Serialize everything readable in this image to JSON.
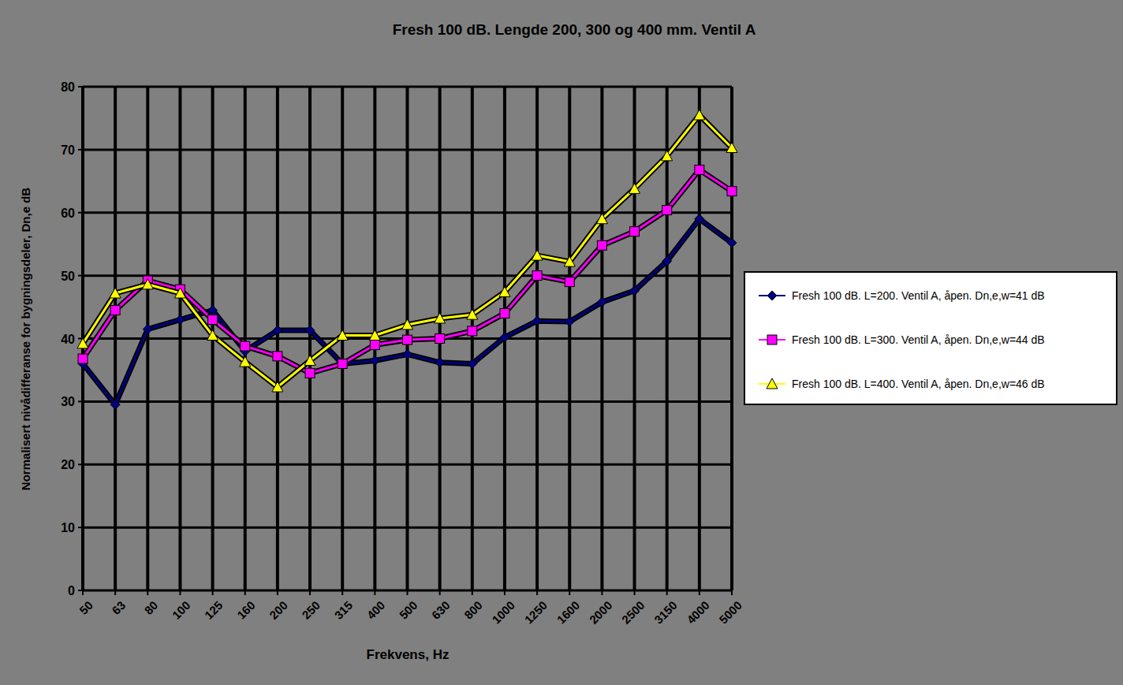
{
  "chart_data": {
    "type": "line",
    "title": "Fresh 100 dB. Lengde 200, 300 og 400 mm. Ventil A",
    "x_label": "Frekvens, Hz",
    "y_label": "Normalisert nivådifferanse for bygningsdeler, Dn,e dB",
    "categories": [
      "50",
      "63",
      "80",
      "100",
      "125",
      "160",
      "200",
      "250",
      "315",
      "400",
      "500",
      "630",
      "800",
      "1000",
      "1250",
      "1600",
      "2000",
      "2500",
      "3150",
      "4000",
      "5000"
    ],
    "ylim": [
      0,
      80
    ],
    "yticks": [
      0,
      10,
      20,
      30,
      40,
      50,
      60,
      70,
      80
    ],
    "grid": true,
    "legend": "right",
    "series": [
      {
        "name": "Fresh 100 dB. L=200. Ventil A, åpen. Dn,e,w=41 dB",
        "color": "#000080",
        "marker": "diamond",
        "values": [
          36,
          29.5,
          41.5,
          43,
          44.5,
          38,
          41.3,
          41.3,
          36,
          36.5,
          37.5,
          36.2,
          36,
          40.2,
          42.8,
          42.7,
          45.8,
          47.6,
          52.3,
          59,
          55.2
        ]
      },
      {
        "name": "Fresh 100 dB. L=300. Ventil A, åpen. Dn,e,w=44 dB",
        "color": "#ff00ff",
        "marker": "square",
        "values": [
          36.8,
          44.5,
          49.2,
          47.8,
          43,
          38.8,
          37.2,
          34.5,
          36,
          39,
          39.8,
          40,
          41.2,
          44,
          50,
          49,
          54.8,
          57,
          60.4,
          66.8,
          63.4
        ]
      },
      {
        "name": "Fresh 100 dB. L=400. Ventil A, åpen. Dn,e,w=46 dB",
        "color": "#ffff00",
        "marker": "triangle",
        "values": [
          39.2,
          47.2,
          48.6,
          47.2,
          40.5,
          36.3,
          32.3,
          36.5,
          40.5,
          40.5,
          42.2,
          43.2,
          43.8,
          47.4,
          53.2,
          52.2,
          59,
          63.8,
          69,
          75.5,
          70.3
        ]
      }
    ]
  }
}
